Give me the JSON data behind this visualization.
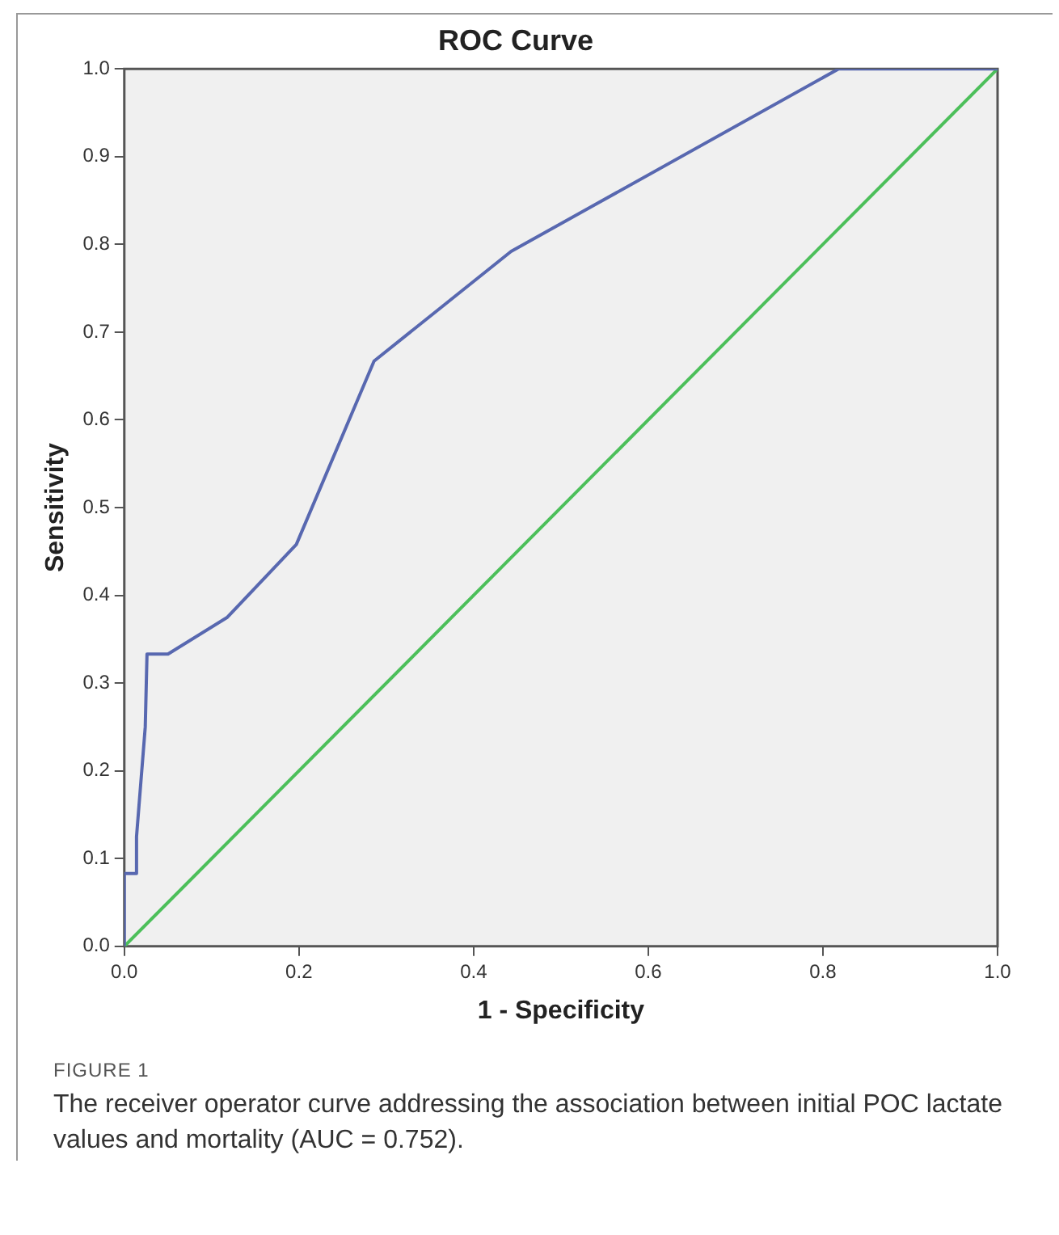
{
  "chart_data": {
    "type": "line",
    "title": "ROC Curve",
    "xlabel": "1 - Specificity",
    "ylabel": "Sensitivity",
    "xlim": [
      0,
      1
    ],
    "ylim": [
      0,
      1
    ],
    "xticks": [
      {
        "value": 0,
        "label": "0.0"
      },
      0.2,
      0.4,
      0.6,
      0.8,
      {
        "value": 1,
        "label": "1.0"
      }
    ],
    "yticks": [
      {
        "value": 0,
        "label": "0.0"
      },
      0.1,
      0.2,
      0.3,
      0.4,
      0.5,
      0.6,
      0.7,
      0.8,
      0.9,
      {
        "value": 1,
        "label": "1.0"
      }
    ],
    "series": [
      {
        "color": "#5868b0",
        "x": [
          0,
          0,
          0.014,
          0.014,
          0.024,
          0.026,
          0.05,
          0.118,
          0.197,
          0.286,
          0.443,
          0.818,
          1
        ],
        "values": [
          0,
          0.083,
          0.083,
          0.125,
          0.25,
          0.333,
          0.333,
          0.375,
          0.458,
          0.667,
          0.792,
          1,
          1
        ]
      },
      {
        "color": "#4cbf5a",
        "x": [
          0,
          1
        ],
        "values": [
          0,
          1
        ]
      }
    ],
    "grid": false,
    "legend": false,
    "marker": "none",
    "line_style": "solid",
    "annotations": [
      "FIGURE 1",
      "The receiver operator curve addressing the association between initial POC lactate values and mortality (AUC = 0.752)."
    ]
  }
}
